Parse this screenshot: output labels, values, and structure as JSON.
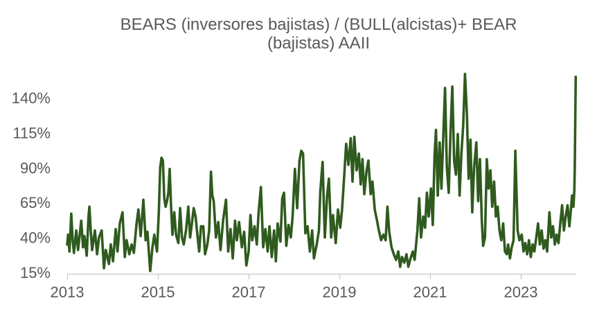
{
  "chart": {
    "title_line1": "BEARS (inversores bajistas) / (BULL(alcistas)+ BEAR",
    "title_line2": "(bajistas) AAII"
  },
  "chart_data": {
    "type": "line",
    "title": "BEARS (inversores bajistas) / (BULL(alcistas)+ BEAR (bajistas) AAII",
    "xlabel": "",
    "ylabel": "",
    "grid": false,
    "legend": false,
    "unit": "percent",
    "x_range": [
      2013.0,
      2024.25
    ],
    "y_range_shown": [
      15,
      140
    ],
    "x_ticks": [
      2013,
      2015,
      2017,
      2019,
      2021,
      2023
    ],
    "x_tick_labels": [
      "2013",
      "2015",
      "2017",
      "2019",
      "2021",
      "2023"
    ],
    "y_ticks": [
      15,
      40,
      65,
      90,
      115,
      140
    ],
    "y_tick_labels": [
      "15%",
      "40%",
      "65%",
      "90%",
      "115%",
      "140%"
    ],
    "colors": {
      "series": "#2f5b1e",
      "axis_text": "#595959",
      "axis_line": "#c9c9c9",
      "background": "#ffffff"
    },
    "series": [
      {
        "name": "BEARS / (BULL + BEAR) AAII",
        "color": "#2f5b1e",
        "points": [
          [
            2013.0,
            35
          ],
          [
            2013.02,
            42
          ],
          [
            2013.05,
            30
          ],
          [
            2013.09,
            57
          ],
          [
            2013.12,
            38
          ],
          [
            2013.15,
            29
          ],
          [
            2013.2,
            45
          ],
          [
            2013.24,
            31
          ],
          [
            2013.31,
            52
          ],
          [
            2013.35,
            33
          ],
          [
            2013.38,
            41
          ],
          [
            2013.43,
            27
          ],
          [
            2013.47,
            55
          ],
          [
            2013.49,
            62
          ],
          [
            2013.52,
            44
          ],
          [
            2013.55,
            31
          ],
          [
            2013.61,
            45
          ],
          [
            2013.66,
            28
          ],
          [
            2013.7,
            40
          ],
          [
            2013.76,
            45
          ],
          [
            2013.81,
            18
          ],
          [
            2013.85,
            31
          ],
          [
            2013.92,
            21
          ],
          [
            2013.96,
            35
          ],
          [
            2014.01,
            23
          ],
          [
            2014.07,
            46
          ],
          [
            2014.11,
            30
          ],
          [
            2014.16,
            50
          ],
          [
            2014.22,
            58
          ],
          [
            2014.27,
            26
          ],
          [
            2014.31,
            38
          ],
          [
            2014.37,
            28
          ],
          [
            2014.42,
            35
          ],
          [
            2014.47,
            29
          ],
          [
            2014.53,
            50
          ],
          [
            2014.57,
            60
          ],
          [
            2014.62,
            41
          ],
          [
            2014.68,
            67
          ],
          [
            2014.73,
            38
          ],
          [
            2014.77,
            44
          ],
          [
            2014.83,
            16
          ],
          [
            2014.88,
            33
          ],
          [
            2014.92,
            42
          ],
          [
            2014.98,
            30
          ],
          [
            2015.02,
            58
          ],
          [
            2015.05,
            90
          ],
          [
            2015.08,
            97
          ],
          [
            2015.11,
            95
          ],
          [
            2015.14,
            68
          ],
          [
            2015.17,
            62
          ],
          [
            2015.2,
            66
          ],
          [
            2015.23,
            72
          ],
          [
            2015.26,
            89
          ],
          [
            2015.29,
            62
          ],
          [
            2015.32,
            42
          ],
          [
            2015.36,
            58
          ],
          [
            2015.4,
            42
          ],
          [
            2015.45,
            36
          ],
          [
            2015.49,
            61
          ],
          [
            2015.53,
            40
          ],
          [
            2015.57,
            35
          ],
          [
            2015.62,
            45
          ],
          [
            2015.67,
            62
          ],
          [
            2015.71,
            40
          ],
          [
            2015.75,
            50
          ],
          [
            2015.79,
            61
          ],
          [
            2015.83,
            55
          ],
          [
            2015.87,
            42
          ],
          [
            2015.91,
            30
          ],
          [
            2015.95,
            48
          ],
          [
            2016.0,
            48
          ],
          [
            2016.04,
            28
          ],
          [
            2016.09,
            35
          ],
          [
            2016.13,
            45
          ],
          [
            2016.17,
            87
          ],
          [
            2016.2,
            70
          ],
          [
            2016.23,
            66
          ],
          [
            2016.28,
            40
          ],
          [
            2016.33,
            51
          ],
          [
            2016.38,
            31
          ],
          [
            2016.44,
            53
          ],
          [
            2016.5,
            67
          ],
          [
            2016.55,
            30
          ],
          [
            2016.6,
            46
          ],
          [
            2016.65,
            25
          ],
          [
            2016.7,
            52
          ],
          [
            2016.74,
            38
          ],
          [
            2016.79,
            51
          ],
          [
            2016.85,
            33
          ],
          [
            2016.9,
            44
          ],
          [
            2016.95,
            20
          ],
          [
            2017.0,
            30
          ],
          [
            2017.04,
            56
          ],
          [
            2017.08,
            38
          ],
          [
            2017.13,
            48
          ],
          [
            2017.18,
            35
          ],
          [
            2017.22,
            58
          ],
          [
            2017.27,
            76
          ],
          [
            2017.32,
            33
          ],
          [
            2017.37,
            46
          ],
          [
            2017.42,
            30
          ],
          [
            2017.46,
            48
          ],
          [
            2017.51,
            26
          ],
          [
            2017.56,
            45
          ],
          [
            2017.6,
            23
          ],
          [
            2017.64,
            50
          ],
          [
            2017.7,
            37
          ],
          [
            2017.74,
            68
          ],
          [
            2017.78,
            72
          ],
          [
            2017.83,
            34
          ],
          [
            2017.88,
            49
          ],
          [
            2017.93,
            40
          ],
          [
            2017.97,
            55
          ],
          [
            2018.02,
            89
          ],
          [
            2018.07,
            61
          ],
          [
            2018.12,
            95
          ],
          [
            2018.16,
            102
          ],
          [
            2018.2,
            100
          ],
          [
            2018.25,
            43
          ],
          [
            2018.3,
            48
          ],
          [
            2018.35,
            30
          ],
          [
            2018.4,
            45
          ],
          [
            2018.44,
            25
          ],
          [
            2018.5,
            35
          ],
          [
            2018.55,
            45
          ],
          [
            2018.58,
            73
          ],
          [
            2018.63,
            94
          ],
          [
            2018.68,
            40
          ],
          [
            2018.73,
            70
          ],
          [
            2018.77,
            82
          ],
          [
            2018.82,
            40
          ],
          [
            2018.86,
            56
          ],
          [
            2018.92,
            36
          ],
          [
            2018.97,
            60
          ],
          [
            2019.02,
            47
          ],
          [
            2019.06,
            60
          ],
          [
            2019.1,
            80
          ],
          [
            2019.15,
            107
          ],
          [
            2019.2,
            92
          ],
          [
            2019.25,
            111
          ],
          [
            2019.29,
            80
          ],
          [
            2019.33,
            112
          ],
          [
            2019.38,
            88
          ],
          [
            2019.43,
            100
          ],
          [
            2019.47,
            78
          ],
          [
            2019.51,
            96
          ],
          [
            2019.55,
            71
          ],
          [
            2019.6,
            88
          ],
          [
            2019.64,
            95
          ],
          [
            2019.69,
            71
          ],
          [
            2019.73,
            80
          ],
          [
            2019.78,
            60
          ],
          [
            2019.83,
            52
          ],
          [
            2019.87,
            45
          ],
          [
            2019.92,
            38
          ],
          [
            2019.97,
            42
          ],
          [
            2020.02,
            38
          ],
          [
            2020.06,
            62
          ],
          [
            2020.1,
            44
          ],
          [
            2020.15,
            33
          ],
          [
            2020.2,
            28
          ],
          [
            2020.25,
            24
          ],
          [
            2020.3,
            30
          ],
          [
            2020.34,
            19
          ],
          [
            2020.38,
            26
          ],
          [
            2020.43,
            22
          ],
          [
            2020.48,
            28
          ],
          [
            2020.52,
            19
          ],
          [
            2020.57,
            25
          ],
          [
            2020.62,
            30
          ],
          [
            2020.66,
            24
          ],
          [
            2020.72,
            45
          ],
          [
            2020.76,
            68
          ],
          [
            2020.8,
            40
          ],
          [
            2020.85,
            55
          ],
          [
            2020.89,
            47
          ],
          [
            2020.93,
            72
          ],
          [
            2020.97,
            55
          ],
          [
            2021.02,
            75
          ],
          [
            2021.06,
            49
          ],
          [
            2021.1,
            99
          ],
          [
            2021.13,
            117
          ],
          [
            2021.17,
            70
          ],
          [
            2021.21,
            108
          ],
          [
            2021.25,
            75
          ],
          [
            2021.29,
            112
          ],
          [
            2021.33,
            147
          ],
          [
            2021.37,
            90
          ],
          [
            2021.41,
            72
          ],
          [
            2021.45,
            115
          ],
          [
            2021.49,
            148
          ],
          [
            2021.53,
            95
          ],
          [
            2021.57,
            85
          ],
          [
            2021.61,
            114
          ],
          [
            2021.65,
            70
          ],
          [
            2021.69,
            100
          ],
          [
            2021.73,
            120
          ],
          [
            2021.77,
            157
          ],
          [
            2021.81,
            129
          ],
          [
            2021.85,
            82
          ],
          [
            2021.89,
            110
          ],
          [
            2021.93,
            58
          ],
          [
            2021.97,
            90
          ],
          [
            2022.02,
            108
          ],
          [
            2022.06,
            66
          ],
          [
            2022.1,
            96
          ],
          [
            2022.14,
            52
          ],
          [
            2022.17,
            34
          ],
          [
            2022.21,
            40
          ],
          [
            2022.25,
            96
          ],
          [
            2022.29,
            75
          ],
          [
            2022.33,
            88
          ],
          [
            2022.37,
            62
          ],
          [
            2022.41,
            80
          ],
          [
            2022.45,
            55
          ],
          [
            2022.49,
            62
          ],
          [
            2022.53,
            45
          ],
          [
            2022.57,
            38
          ],
          [
            2022.61,
            50
          ],
          [
            2022.65,
            30
          ],
          [
            2022.69,
            28
          ],
          [
            2022.72,
            35
          ],
          [
            2022.76,
            25
          ],
          [
            2022.8,
            33
          ],
          [
            2022.84,
            38
          ],
          [
            2022.88,
            102
          ],
          [
            2022.93,
            45
          ],
          [
            2022.97,
            38
          ],
          [
            2023.02,
            42
          ],
          [
            2023.06,
            30
          ],
          [
            2023.1,
            36
          ],
          [
            2023.14,
            28
          ],
          [
            2023.18,
            38
          ],
          [
            2023.22,
            26
          ],
          [
            2023.26,
            35
          ],
          [
            2023.3,
            30
          ],
          [
            2023.34,
            40
          ],
          [
            2023.38,
            50
          ],
          [
            2023.42,
            35
          ],
          [
            2023.46,
            45
          ],
          [
            2023.5,
            32
          ],
          [
            2023.54,
            38
          ],
          [
            2023.58,
            30
          ],
          [
            2023.63,
            58
          ],
          [
            2023.67,
            40
          ],
          [
            2023.71,
            48
          ],
          [
            2023.75,
            35
          ],
          [
            2023.79,
            42
          ],
          [
            2023.83,
            36
          ],
          [
            2023.87,
            50
          ],
          [
            2023.91,
            63
          ],
          [
            2023.95,
            45
          ],
          [
            2023.99,
            55
          ],
          [
            2024.03,
            63
          ],
          [
            2024.07,
            48
          ],
          [
            2024.1,
            58
          ],
          [
            2024.13,
            70
          ],
          [
            2024.16,
            62
          ],
          [
            2024.18,
            74
          ],
          [
            2024.19,
            90
          ],
          [
            2024.21,
            155
          ]
        ]
      }
    ]
  }
}
